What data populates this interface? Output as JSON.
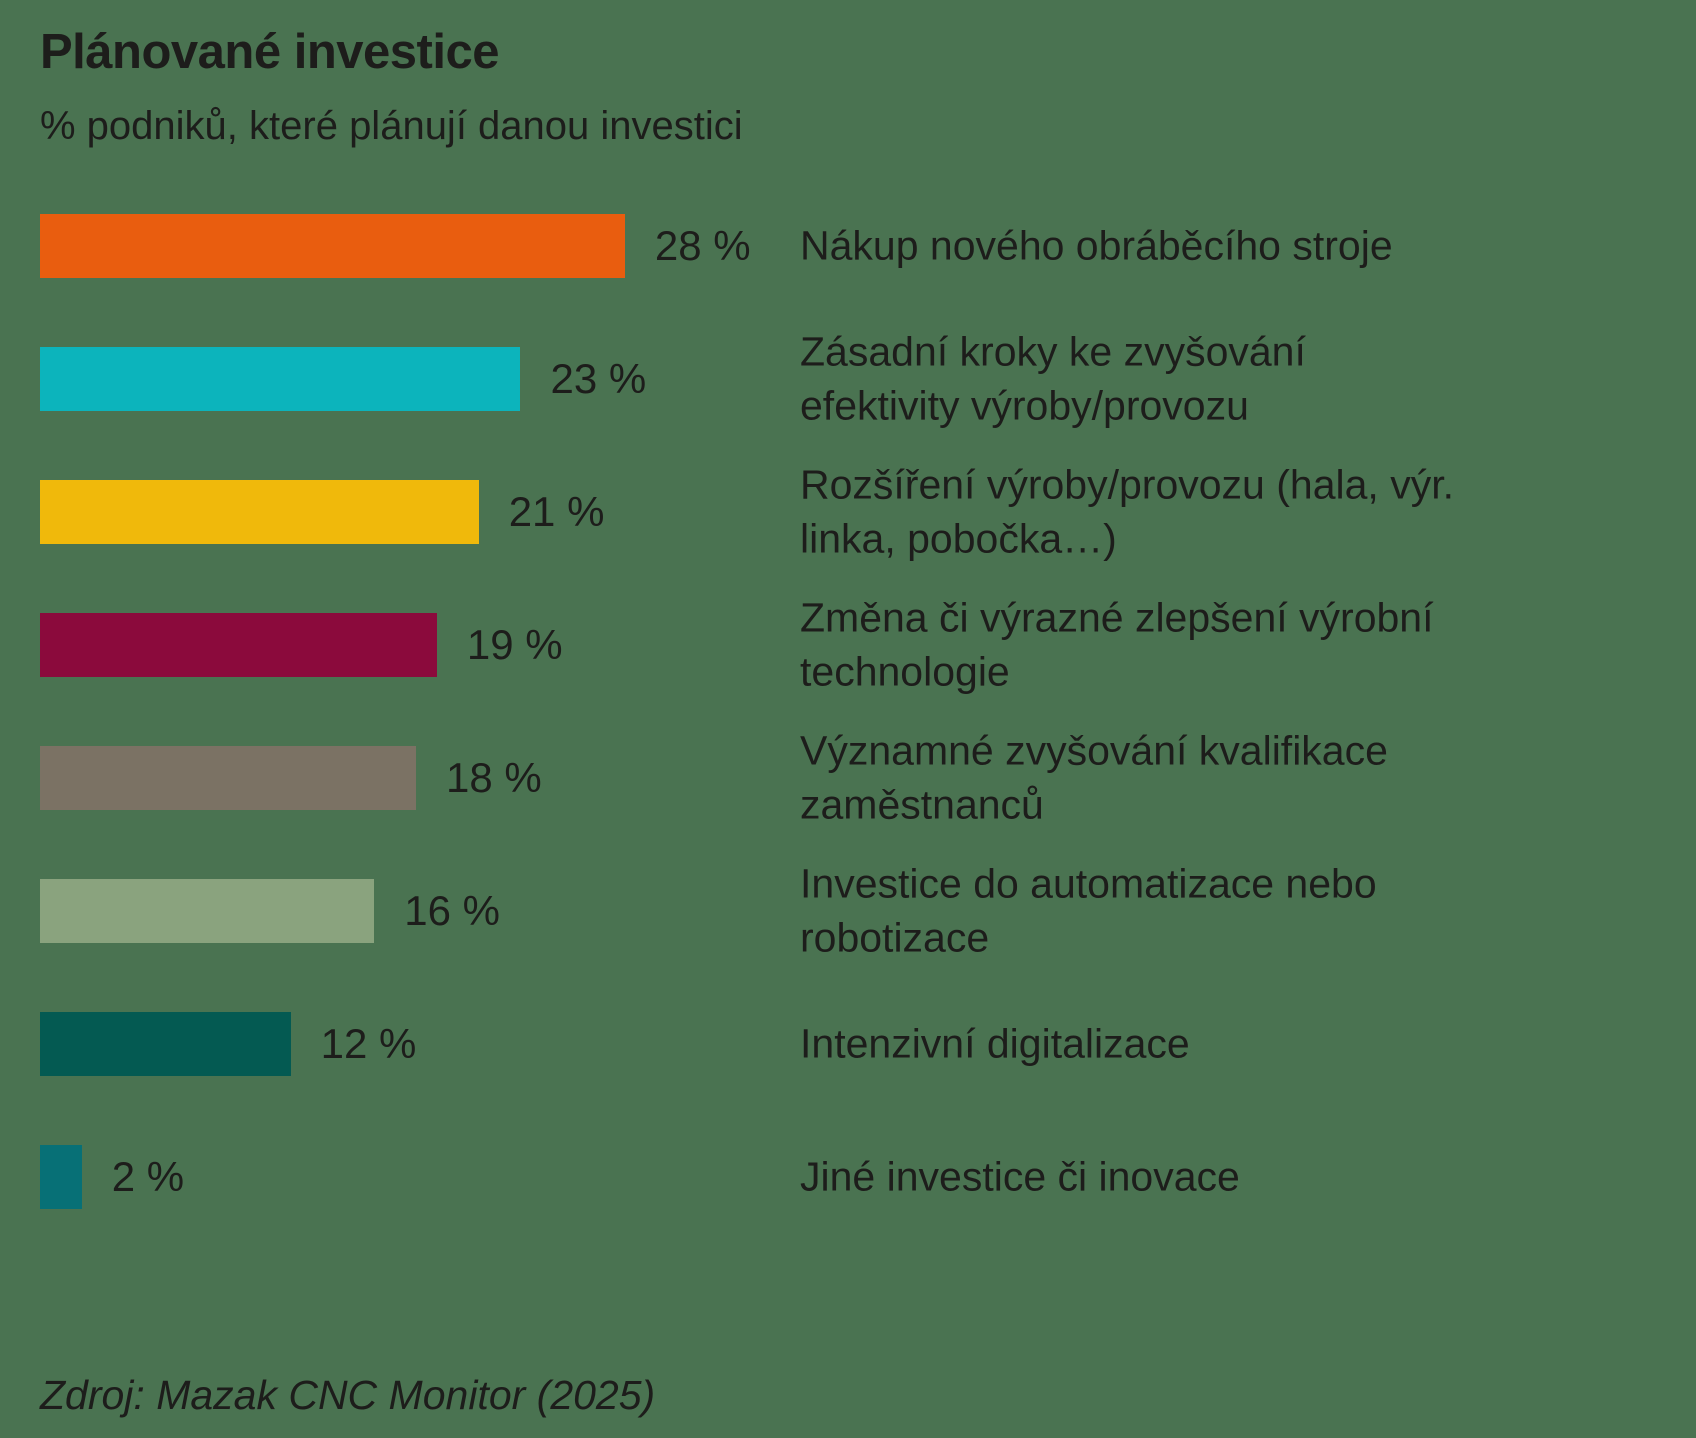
{
  "chart_data": {
    "type": "bar",
    "orientation": "horizontal",
    "title": "Plánované investice",
    "subtitle": "% podniků, které plánují danou investici",
    "source": "Zdroj: Mazak CNC Monitor (2025)",
    "unit": "%",
    "xlim": [
      0,
      28
    ],
    "grid": false,
    "legend": "none",
    "background_color": "#4a7351",
    "text_color": "#1d1d1b",
    "categories": [
      "Nákup nového obráběcího stroje",
      "Zásadní kroky ke zvyšování efektivity výroby/provozu",
      "Rozšíření výroby/provozu (hala, výr. linka, pobočka…)",
      "Změna či výrazné zlepšení výrobní technologie",
      "Významné zvyšování kvalifikace zaměstnanců",
      "Investice do automatizace nebo robotizace",
      "Intenzivní digitalizace",
      "Jiné investice či inovace"
    ],
    "values": [
      28,
      23,
      21,
      19,
      18,
      16,
      12,
      2
    ],
    "bars": [
      {
        "label": "Nákup nového obráběcího stroje",
        "value": 28,
        "value_label": "28 %",
        "color": "#e95d0f"
      },
      {
        "label": "Zásadní kroky ke zvyšování\nefektivity výroby/provozu",
        "value": 23,
        "value_label": "23 %",
        "color": "#0cb4bc"
      },
      {
        "label": "Rozšíření výroby/provozu (hala, výr.\nlinka, pobočka…)",
        "value": 21,
        "value_label": "21 %",
        "color": "#f0b90b"
      },
      {
        "label": "Změna či výrazné zlepšení výrobní\ntechnologie",
        "value": 19,
        "value_label": "19 %",
        "color": "#8b0a3c"
      },
      {
        "label": "Významné zvyšování kvalifikace\nzaměstnanců",
        "value": 18,
        "value_label": "18 %",
        "color": "#7b7264"
      },
      {
        "label": "Investice do automatizace nebo\nrobotizace",
        "value": 16,
        "value_label": "16 %",
        "color": "#8aa37e"
      },
      {
        "label": "Intenzivní digitalizace",
        "value": 12,
        "value_label": "12 %",
        "color": "#045a52"
      },
      {
        "label": "Jiné investice či inovace",
        "value": 2,
        "value_label": "2 %",
        "color": "#077076"
      }
    ]
  }
}
